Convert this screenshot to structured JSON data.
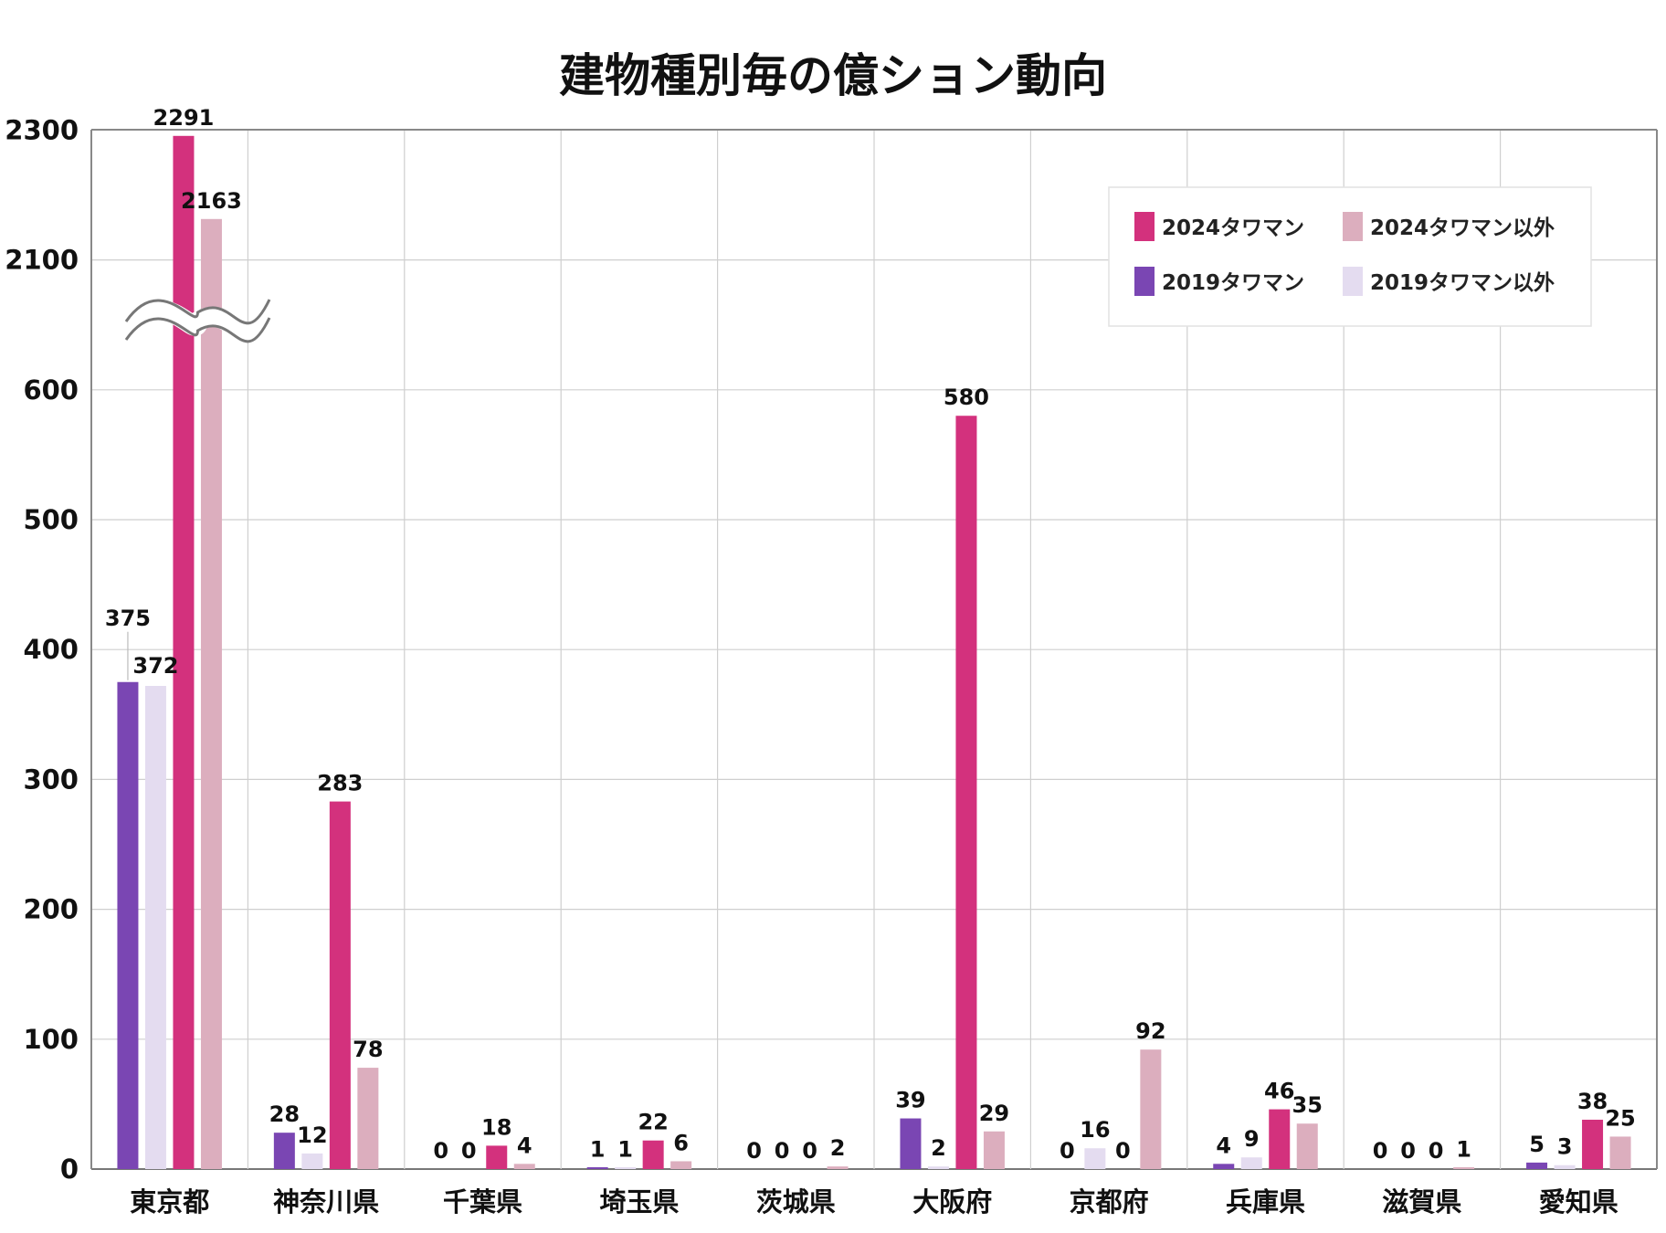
{
  "chart_data": {
    "type": "bar",
    "title": "建物種別毎の億ション動向",
    "xlabel": "",
    "ylabel": "",
    "categories": [
      "東京都",
      "神奈川県",
      "千葉県",
      "埼玉県",
      "茨城県",
      "大阪府",
      "京都府",
      "兵庫県",
      "滋賀県",
      "愛知県"
    ],
    "series": [
      {
        "name": "2019タワマン",
        "color": "#7a46b3",
        "values": [
          375,
          28,
          0,
          1,
          0,
          39,
          0,
          4,
          0,
          5
        ]
      },
      {
        "name": "2019タワマン以外",
        "color": "#e4dcf0",
        "values": [
          372,
          12,
          0,
          1,
          0,
          2,
          16,
          9,
          0,
          3
        ]
      },
      {
        "name": "2024タワマン",
        "color": "#d3317d",
        "values": [
          2291,
          283,
          18,
          22,
          0,
          580,
          0,
          46,
          0,
          38
        ]
      },
      {
        "name": "2024タワマン以外",
        "color": "#dcaebe",
        "values": [
          2163,
          78,
          4,
          6,
          2,
          29,
          92,
          35,
          1,
          25
        ]
      }
    ],
    "yticks": [
      "0",
      "100",
      "200",
      "300",
      "400",
      "500",
      "600",
      "2100",
      "2300"
    ],
    "axis_break": {
      "lower_range": [
        0,
        600
      ],
      "upper_range": [
        2100,
        2300
      ]
    },
    "legend": {
      "position": "top-right",
      "order": [
        "2024タワマン",
        "2024タワマン以外",
        "2019タワマン",
        "2019タワマン以外"
      ]
    },
    "grid": true
  }
}
